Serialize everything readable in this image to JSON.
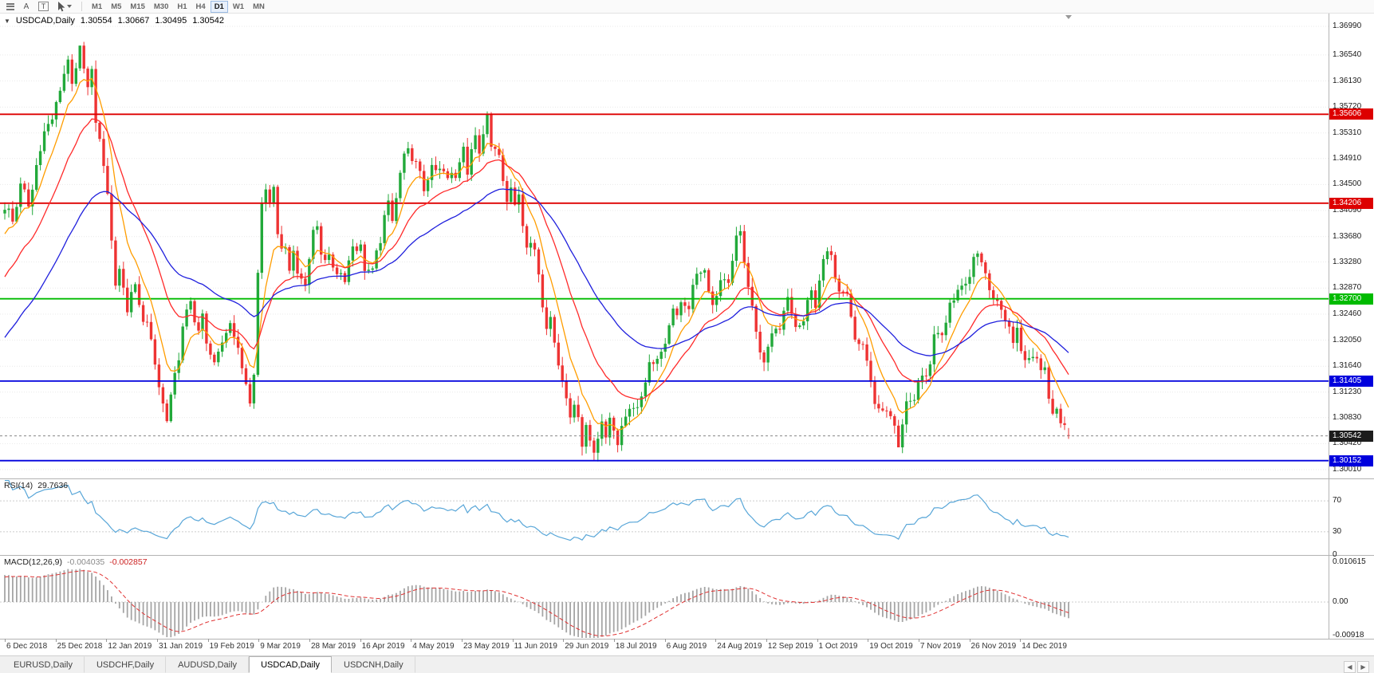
{
  "toolbar": {
    "icons": [
      {
        "name": "chart-objects-icon"
      },
      {
        "name": "font-tool-icon",
        "glyph": "A"
      },
      {
        "name": "text-tool-icon",
        "glyph": "T",
        "boxed": true
      },
      {
        "name": "cursor-tool-icon",
        "dropdown": true
      }
    ],
    "timeframes": [
      "M1",
      "M5",
      "M15",
      "M30",
      "H1",
      "H4",
      "D1",
      "W1",
      "MN"
    ],
    "active_timeframe": "D1"
  },
  "chart_header": {
    "collapse_icon": "▼",
    "symbol": "USDCAD,Daily",
    "open": "1.30554",
    "high": "1.30667",
    "low": "1.30495",
    "close": "1.30542"
  },
  "rsi_header": {
    "label": "RSI(14)",
    "value": "29.7636"
  },
  "macd_header": {
    "label": "MACD(12,26,9)",
    "main": "-0.004035",
    "signal": "-0.002857"
  },
  "tabs": {
    "items": [
      "EURUSD,Daily",
      "USDCHF,Daily",
      "AUDUSD,Daily",
      "USDCAD,Daily",
      "USDCNH,Daily"
    ],
    "active_index": 3,
    "scroll_left_icon": "◀",
    "scroll_right_icon": "▶"
  },
  "chart_data": {
    "type": "candlestick",
    "symbol": "USDCAD",
    "timeframe": "Daily",
    "visible_bars": 270,
    "current_price": 1.30542,
    "current_price_label": "1.30542",
    "y_axis_ticks": [
      "1.36990",
      "1.36540",
      "1.36130",
      "1.35720",
      "1.35310",
      "1.34910",
      "1.34500",
      "1.34090",
      "1.33680",
      "1.33280",
      "1.32870",
      "1.32460",
      "1.32050",
      "1.31640",
      "1.31230",
      "1.30830",
      "1.30420",
      "1.30010"
    ],
    "x_axis_labels": [
      "6 Dec 2018",
      "25 Dec 2018",
      "12 Jan 2019",
      "31 Jan 2019",
      "19 Feb 2019",
      "9 Mar 2019",
      "28 Mar 2019",
      "16 Apr 2019",
      "4 May 2019",
      "23 May 2019",
      "11 Jun 2019",
      "29 Jun 2019",
      "18 Jul 2019",
      "6 Aug 2019",
      "24 Aug 2019",
      "12 Sep 2019",
      "1 Oct 2019",
      "19 Oct 2019",
      "7 Nov 2019",
      "26 Nov 2019",
      "14 Dec 2019"
    ],
    "horizontal_levels": [
      {
        "price": 1.35606,
        "label": "1.35606",
        "color": "#dd0000"
      },
      {
        "price": 1.34206,
        "label": "1.34206",
        "color": "#dd0000"
      },
      {
        "price": 1.327,
        "label": "1.32700",
        "color": "#00bb00"
      },
      {
        "price": 1.31405,
        "label": "1.31405",
        "color": "#0000dd"
      },
      {
        "price": 1.30152,
        "label": "1.30152",
        "color": "#0000dd"
      }
    ],
    "moving_averages": [
      {
        "period": 8,
        "color": "#ff9d00"
      },
      {
        "period": 20,
        "color": "#ff2a2a"
      },
      {
        "period": 45,
        "color": "#2020dd"
      }
    ],
    "rsi": {
      "period": 14,
      "current": 29.7636,
      "levels": [
        70,
        30,
        0
      ]
    },
    "macd": {
      "fast": 12,
      "slow": 26,
      "signal": 9,
      "current_main": -0.004035,
      "current_signal": -0.002857,
      "axis_labels": [
        "0.010615",
        "0.00",
        "-0.00918"
      ]
    },
    "colors": {
      "up": "#22a93a",
      "down": "#ee3333",
      "grid": "#e9e9e9",
      "rsi": "#58a6d8",
      "macd_hist": "#a5a5a5",
      "macd_signal": "#e03030",
      "current": "#1c1c1c"
    },
    "warmup_anchors": [
      [
        -60,
        1.298
      ],
      [
        -40,
        1.301
      ],
      [
        -25,
        1.312
      ],
      [
        -12,
        1.326
      ],
      [
        -4,
        1.337
      ],
      [
        -1,
        1.3405
      ]
    ],
    "price_anchors": [
      [
        0,
        1.342
      ],
      [
        2,
        1.3395
      ],
      [
        4,
        1.3445
      ],
      [
        6,
        1.342
      ],
      [
        8,
        1.348
      ],
      [
        10,
        1.353
      ],
      [
        12,
        1.355
      ],
      [
        14,
        1.3605
      ],
      [
        16,
        1.3645
      ],
      [
        17,
        1.3615
      ],
      [
        19,
        1.366
      ],
      [
        21,
        1.36
      ],
      [
        22,
        1.3625
      ],
      [
        23,
        1.355
      ],
      [
        25,
        1.348
      ],
      [
        26,
        1.344
      ],
      [
        27,
        1.336
      ],
      [
        28,
        1.33
      ],
      [
        29,
        1.332
      ],
      [
        30,
        1.328
      ],
      [
        31,
        1.3255
      ],
      [
        33,
        1.329
      ],
      [
        34,
        1.3255
      ],
      [
        36,
        1.323
      ],
      [
        38,
        1.3165
      ],
      [
        39,
        1.313
      ],
      [
        41,
        1.3075
      ],
      [
        43,
        1.3145
      ],
      [
        45,
        1.322
      ],
      [
        47,
        1.327
      ],
      [
        49,
        1.321
      ],
      [
        50,
        1.3245
      ],
      [
        51,
        1.3195
      ],
      [
        53,
        1.3165
      ],
      [
        55,
        1.3205
      ],
      [
        57,
        1.324
      ],
      [
        59,
        1.3185
      ],
      [
        61,
        1.314
      ],
      [
        62,
        1.3115
      ],
      [
        63,
        1.316
      ],
      [
        64,
        1.331
      ],
      [
        65,
        1.342
      ],
      [
        66,
        1.3445
      ],
      [
        67,
        1.3425
      ],
      [
        68,
        1.3455
      ],
      [
        69,
        1.338
      ],
      [
        70,
        1.334
      ],
      [
        71,
        1.336
      ],
      [
        72,
        1.332
      ],
      [
        73,
        1.3345
      ],
      [
        74,
        1.331
      ],
      [
        76,
        1.33
      ],
      [
        77,
        1.3335
      ],
      [
        78,
        1.337
      ],
      [
        79,
        1.3385
      ],
      [
        80,
        1.3345
      ],
      [
        82,
        1.333
      ],
      [
        84,
        1.3315
      ],
      [
        86,
        1.3305
      ],
      [
        88,
        1.3355
      ],
      [
        90,
        1.335
      ],
      [
        91,
        1.332
      ],
      [
        93,
        1.331
      ],
      [
        95,
        1.3365
      ],
      [
        97,
        1.342
      ],
      [
        98,
        1.34
      ],
      [
        100,
        1.347
      ],
      [
        102,
        1.3515
      ],
      [
        103,
        1.348
      ],
      [
        105,
        1.3475
      ],
      [
        106,
        1.344
      ],
      [
        108,
        1.3485
      ],
      [
        110,
        1.347
      ],
      [
        112,
        1.3465
      ],
      [
        114,
        1.346
      ],
      [
        116,
        1.3505
      ],
      [
        117,
        1.3475
      ],
      [
        119,
        1.3525
      ],
      [
        120,
        1.349
      ],
      [
        122,
        1.3555
      ],
      [
        123,
        1.3505
      ],
      [
        125,
        1.3495
      ],
      [
        127,
        1.342
      ],
      [
        128,
        1.3445
      ],
      [
        129,
        1.341
      ],
      [
        130,
        1.343
      ],
      [
        132,
        1.3355
      ],
      [
        134,
        1.3345
      ],
      [
        135,
        1.33
      ],
      [
        137,
        1.323
      ],
      [
        138,
        1.325
      ],
      [
        140,
        1.317
      ],
      [
        141,
        1.314
      ],
      [
        143,
        1.3085
      ],
      [
        144,
        1.3105
      ],
      [
        146,
        1.3045
      ],
      [
        147,
        1.3065
      ],
      [
        149,
        1.3018
      ],
      [
        151,
        1.307
      ],
      [
        152,
        1.305
      ],
      [
        153,
        1.3085
      ],
      [
        155,
        1.304
      ],
      [
        157,
        1.309
      ],
      [
        159,
        1.31
      ],
      [
        161,
        1.311
      ],
      [
        163,
        1.3165
      ],
      [
        165,
        1.318
      ],
      [
        167,
        1.319
      ],
      [
        169,
        1.325
      ],
      [
        171,
        1.3255
      ],
      [
        173,
        1.326
      ],
      [
        175,
        1.3315
      ],
      [
        177,
        1.332
      ],
      [
        179,
        1.326
      ],
      [
        181,
        1.33
      ],
      [
        183,
        1.3305
      ],
      [
        185,
        1.336
      ],
      [
        186,
        1.3375
      ],
      [
        188,
        1.329
      ],
      [
        190,
        1.322
      ],
      [
        192,
        1.3165
      ],
      [
        194,
        1.322
      ],
      [
        196,
        1.3225
      ],
      [
        198,
        1.328
      ],
      [
        200,
        1.323
      ],
      [
        202,
        1.3235
      ],
      [
        204,
        1.329
      ],
      [
        205,
        1.3265
      ],
      [
        207,
        1.333
      ],
      [
        209,
        1.334
      ],
      [
        211,
        1.328
      ],
      [
        213,
        1.327
      ],
      [
        215,
        1.321
      ],
      [
        217,
        1.3195
      ],
      [
        218,
        1.3165
      ],
      [
        220,
        1.311
      ],
      [
        222,
        1.3095
      ],
      [
        224,
        1.309
      ],
      [
        226,
        1.3042
      ],
      [
        228,
        1.31
      ],
      [
        230,
        1.311
      ],
      [
        231,
        1.314
      ],
      [
        233,
        1.3145
      ],
      [
        235,
        1.3205
      ],
      [
        237,
        1.321
      ],
      [
        239,
        1.327
      ],
      [
        241,
        1.328
      ],
      [
        243,
        1.3285
      ],
      [
        245,
        1.333
      ],
      [
        247,
        1.3335
      ],
      [
        249,
        1.3285
      ],
      [
        251,
        1.327
      ],
      [
        253,
        1.324
      ],
      [
        255,
        1.3195
      ],
      [
        256,
        1.3215
      ],
      [
        258,
        1.317
      ],
      [
        260,
        1.3185
      ],
      [
        262,
        1.3155
      ],
      [
        263,
        1.317
      ],
      [
        264,
        1.312
      ],
      [
        265,
        1.309
      ],
      [
        266,
        1.3105
      ],
      [
        267,
        1.307
      ],
      [
        268,
        1.3065
      ],
      [
        269,
        1.30542
      ]
    ],
    "pins": [
      {
        "i": 19,
        "high": 1.3668
      },
      {
        "i": 122,
        "high": 1.3565
      },
      {
        "i": 149,
        "low": 1.3016
      },
      {
        "i": 186,
        "high": 1.3386
      },
      {
        "i": 226,
        "low": 1.3041
      },
      {
        "i": 269,
        "open": 1.30554,
        "high": 1.30667,
        "low": 1.30495,
        "close": 1.30542
      }
    ]
  }
}
